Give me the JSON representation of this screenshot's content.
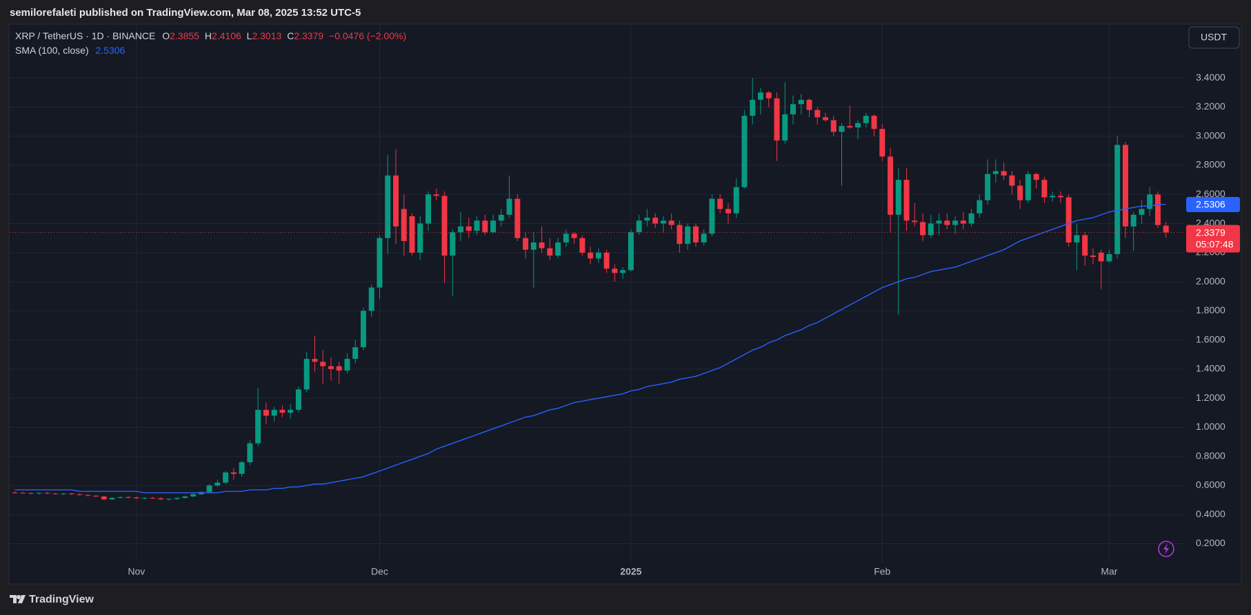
{
  "header": "semilorefaleti published on TradingView.com, Mar 08, 2025 13:52 UTC-5",
  "footer_brand": "TradingView",
  "chart_data": {
    "type": "candlestick",
    "currency_button": "USDT",
    "countdown": "05:07:48",
    "ohlc_letters": [
      "O",
      "H",
      "L",
      "C"
    ],
    "change": "−0.0476 (−2.00%)",
    "categories": [
      null,
      null,
      null,
      null,
      null,
      null,
      null,
      null,
      null,
      null,
      null,
      null,
      null,
      null,
      null,
      "Nov",
      null,
      null,
      null,
      null,
      null,
      null,
      null,
      null,
      null,
      null,
      null,
      null,
      null,
      null,
      null,
      null,
      null,
      null,
      null,
      null,
      null,
      null,
      null,
      null,
      null,
      null,
      null,
      null,
      null,
      "Dec",
      null,
      null,
      null,
      null,
      null,
      null,
      null,
      null,
      null,
      null,
      null,
      null,
      null,
      null,
      null,
      null,
      null,
      null,
      null,
      null,
      null,
      null,
      null,
      null,
      null,
      null,
      null,
      null,
      null,
      null,
      "2025",
      null,
      null,
      null,
      null,
      null,
      null,
      null,
      null,
      null,
      null,
      null,
      null,
      null,
      null,
      null,
      null,
      null,
      null,
      null,
      null,
      null,
      null,
      null,
      null,
      null,
      null,
      null,
      null,
      null,
      null,
      "Feb",
      null,
      null,
      null,
      null,
      null,
      null,
      null,
      null,
      null,
      null,
      null,
      null,
      null,
      null,
      null,
      null,
      null,
      null,
      null,
      null,
      null,
      null,
      null,
      null,
      null,
      null,
      null,
      "Mar",
      null,
      null,
      null,
      null,
      null,
      null,
      null
    ],
    "series": [
      {
        "name": "XRP / TetherUS · 1D · BINANCE",
        "up_color": "#089981",
        "down_color": "#f23645",
        "open": [
          0.552,
          0.55,
          0.548,
          0.545,
          0.55,
          0.545,
          0.542,
          0.545,
          0.54,
          0.535,
          0.53,
          0.525,
          0.505,
          0.515,
          0.52,
          0.518,
          0.512,
          0.515,
          0.512,
          0.505,
          0.508,
          0.515,
          0.525,
          0.54,
          0.555,
          0.6,
          0.62,
          0.69,
          0.68,
          0.76,
          0.89,
          1.12,
          1.08,
          1.12,
          1.1,
          1.12,
          1.26,
          1.47,
          1.45,
          1.42,
          1.42,
          1.39,
          1.47,
          1.55,
          1.8,
          1.96,
          2.3,
          2.73,
          2.5,
          2.45,
          2.2,
          2.4,
          2.6,
          2.59,
          2.18,
          2.34,
          2.38,
          2.35,
          2.42,
          2.34,
          2.42,
          2.46,
          2.57,
          2.3,
          2.22,
          2.27,
          2.23,
          2.18,
          2.27,
          2.33,
          2.3,
          2.2,
          2.16,
          2.2,
          2.09,
          2.06,
          2.08,
          2.34,
          2.42,
          2.44,
          2.4,
          2.42,
          2.39,
          2.26,
          2.38,
          2.27,
          2.33,
          2.57,
          2.5,
          2.47,
          2.65,
          3.14,
          3.25,
          3.3,
          3.26,
          2.97,
          3.15,
          3.22,
          3.25,
          3.18,
          3.13,
          3.11,
          3.03,
          3.07,
          3.06,
          3.09,
          3.14,
          3.05,
          2.86,
          2.46,
          2.7,
          2.42,
          2.41,
          2.32,
          2.4,
          2.42,
          2.39,
          2.42,
          2.4,
          2.47,
          2.56,
          2.74,
          2.76,
          2.73,
          2.66,
          2.56,
          2.74,
          2.7,
          2.58,
          2.59,
          2.58,
          2.27,
          2.32,
          2.18,
          2.2,
          2.14,
          2.19,
          2.94,
          2.38,
          2.46,
          2.5,
          2.6,
          2.3855
        ],
        "high": [
          0.56,
          0.556,
          0.553,
          0.552,
          0.555,
          0.55,
          0.548,
          0.55,
          0.546,
          0.54,
          0.535,
          0.53,
          0.52,
          0.525,
          0.528,
          0.525,
          0.52,
          0.522,
          0.518,
          0.512,
          0.518,
          0.53,
          0.545,
          0.56,
          0.61,
          0.64,
          0.7,
          0.72,
          0.77,
          0.91,
          1.27,
          1.17,
          1.14,
          1.15,
          1.16,
          1.28,
          1.52,
          1.63,
          1.53,
          1.48,
          1.45,
          1.51,
          1.6,
          1.82,
          1.98,
          2.32,
          2.87,
          2.91,
          2.6,
          2.47,
          2.45,
          2.62,
          2.64,
          2.62,
          2.36,
          2.48,
          2.44,
          2.45,
          2.46,
          2.46,
          2.5,
          2.73,
          2.6,
          2.34,
          2.34,
          2.38,
          2.3,
          2.3,
          2.36,
          2.34,
          2.32,
          2.24,
          2.23,
          2.22,
          2.12,
          2.1,
          2.36,
          2.46,
          2.5,
          2.47,
          2.45,
          2.47,
          2.42,
          2.4,
          2.4,
          2.36,
          2.6,
          2.6,
          2.54,
          2.71,
          3.18,
          3.4,
          3.33,
          3.31,
          3.3,
          3.37,
          3.28,
          3.29,
          3.26,
          3.2,
          3.16,
          3.14,
          3.09,
          3.21,
          3.11,
          3.16,
          3.15,
          3.08,
          2.92,
          2.78,
          2.78,
          2.54,
          2.47,
          2.46,
          2.47,
          2.47,
          2.45,
          2.48,
          2.5,
          2.6,
          2.84,
          2.84,
          2.82,
          2.76,
          2.7,
          2.76,
          2.75,
          2.72,
          2.62,
          2.62,
          2.6,
          2.4,
          2.34,
          2.23,
          2.22,
          2.22,
          3.0,
          2.96,
          2.48,
          2.56,
          2.65,
          2.62,
          2.4106
        ],
        "low": [
          0.545,
          0.545,
          0.54,
          0.538,
          0.542,
          0.538,
          0.535,
          0.536,
          0.53,
          0.525,
          0.52,
          0.5,
          0.5,
          0.51,
          0.512,
          0.508,
          0.505,
          0.508,
          0.5,
          0.498,
          0.502,
          0.51,
          0.52,
          0.535,
          0.55,
          0.59,
          0.61,
          0.64,
          0.66,
          0.74,
          0.87,
          1.02,
          1.04,
          1.07,
          1.06,
          1.1,
          1.24,
          1.38,
          1.3,
          1.32,
          1.3,
          1.37,
          1.44,
          1.53,
          1.76,
          1.88,
          2.19,
          2.26,
          2.18,
          2.18,
          2.15,
          2.35,
          2.56,
          1.99,
          1.9,
          2.28,
          2.3,
          2.32,
          2.32,
          2.33,
          2.38,
          2.44,
          2.28,
          2.16,
          1.96,
          2.2,
          2.15,
          2.16,
          2.24,
          2.26,
          2.18,
          2.12,
          2.13,
          2.06,
          2.0,
          2.02,
          2.07,
          2.32,
          2.38,
          2.37,
          2.34,
          2.36,
          2.2,
          2.22,
          2.24,
          2.25,
          2.31,
          2.47,
          2.4,
          2.44,
          2.64,
          3.08,
          3.15,
          3.2,
          2.83,
          2.95,
          3.08,
          3.15,
          3.13,
          3.08,
          3.1,
          3.0,
          2.66,
          3.05,
          2.98,
          3.06,
          3.0,
          2.83,
          2.34,
          1.77,
          2.35,
          2.38,
          2.28,
          2.3,
          2.32,
          2.36,
          2.33,
          2.36,
          2.38,
          2.44,
          2.53,
          2.68,
          2.7,
          2.6,
          2.5,
          2.54,
          2.64,
          2.54,
          2.55,
          2.54,
          2.24,
          2.08,
          2.11,
          2.12,
          1.95,
          2.13,
          2.16,
          2.3,
          2.21,
          2.4,
          2.45,
          2.37,
          2.3013
        ],
        "close": [
          0.55,
          0.548,
          0.545,
          0.55,
          0.545,
          0.542,
          0.545,
          0.54,
          0.535,
          0.53,
          0.525,
          0.505,
          0.515,
          0.52,
          0.518,
          0.512,
          0.515,
          0.512,
          0.505,
          0.508,
          0.515,
          0.525,
          0.54,
          0.555,
          0.6,
          0.62,
          0.69,
          0.68,
          0.76,
          0.89,
          1.12,
          1.08,
          1.12,
          1.1,
          1.12,
          1.26,
          1.47,
          1.45,
          1.42,
          1.4,
          1.39,
          1.47,
          1.55,
          1.8,
          1.96,
          2.3,
          2.73,
          2.38,
          2.28,
          2.2,
          2.4,
          2.6,
          2.59,
          2.18,
          2.34,
          2.38,
          2.35,
          2.42,
          2.34,
          2.42,
          2.46,
          2.57,
          2.3,
          2.22,
          2.27,
          2.23,
          2.18,
          2.27,
          2.33,
          2.3,
          2.2,
          2.16,
          2.2,
          2.09,
          2.06,
          2.08,
          2.34,
          2.42,
          2.44,
          2.4,
          2.42,
          2.39,
          2.26,
          2.38,
          2.27,
          2.33,
          2.57,
          2.5,
          2.47,
          2.65,
          3.14,
          3.25,
          3.3,
          3.26,
          2.97,
          3.15,
          3.22,
          3.25,
          3.18,
          3.13,
          3.11,
          3.03,
          3.07,
          3.06,
          3.09,
          3.14,
          3.05,
          2.86,
          2.46,
          2.7,
          2.42,
          2.41,
          2.32,
          2.4,
          2.42,
          2.39,
          2.42,
          2.4,
          2.47,
          2.56,
          2.74,
          2.76,
          2.73,
          2.66,
          2.56,
          2.74,
          2.7,
          2.58,
          2.59,
          2.58,
          2.27,
          2.32,
          2.18,
          2.17,
          2.14,
          2.19,
          2.94,
          2.38,
          2.46,
          2.5,
          2.6,
          2.39,
          2.3379
        ]
      },
      {
        "name": "SMA (100, close)",
        "type": "line",
        "color": "#2962ff",
        "values": [
          0.57,
          0.57,
          0.57,
          0.57,
          0.57,
          0.57,
          0.57,
          0.57,
          0.56,
          0.56,
          0.56,
          0.56,
          0.56,
          0.56,
          0.56,
          0.56,
          0.55,
          0.55,
          0.55,
          0.55,
          0.55,
          0.55,
          0.55,
          0.55,
          0.55,
          0.55,
          0.56,
          0.56,
          0.56,
          0.57,
          0.57,
          0.57,
          0.58,
          0.58,
          0.59,
          0.59,
          0.6,
          0.61,
          0.61,
          0.62,
          0.63,
          0.64,
          0.65,
          0.66,
          0.68,
          0.7,
          0.72,
          0.74,
          0.76,
          0.78,
          0.8,
          0.82,
          0.85,
          0.87,
          0.89,
          0.91,
          0.93,
          0.95,
          0.97,
          0.99,
          1.01,
          1.03,
          1.05,
          1.07,
          1.08,
          1.1,
          1.12,
          1.13,
          1.15,
          1.17,
          1.18,
          1.19,
          1.2,
          1.21,
          1.22,
          1.23,
          1.25,
          1.26,
          1.28,
          1.29,
          1.3,
          1.31,
          1.33,
          1.34,
          1.35,
          1.37,
          1.39,
          1.41,
          1.44,
          1.47,
          1.5,
          1.53,
          1.55,
          1.58,
          1.6,
          1.63,
          1.65,
          1.67,
          1.7,
          1.72,
          1.75,
          1.78,
          1.81,
          1.84,
          1.87,
          1.9,
          1.93,
          1.96,
          1.98,
          2.0,
          2.02,
          2.03,
          2.05,
          2.07,
          2.08,
          2.09,
          2.1,
          2.12,
          2.14,
          2.16,
          2.18,
          2.2,
          2.22,
          2.25,
          2.28,
          2.3,
          2.32,
          2.34,
          2.36,
          2.38,
          2.4,
          2.42,
          2.43,
          2.44,
          2.46,
          2.48,
          2.49,
          2.5,
          2.51,
          2.52,
          2.52,
          2.53,
          2.5306
        ]
      }
    ],
    "ylim": [
      0.07,
      3.77
    ],
    "yticks": [
      {
        "value": 0.2,
        "label": "0.2000"
      },
      {
        "value": 0.4,
        "label": "0.4000"
      },
      {
        "value": 0.6,
        "label": "0.6000"
      },
      {
        "value": 0.8,
        "label": "0.8000"
      },
      {
        "value": 1.0,
        "label": "1.0000"
      },
      {
        "value": 1.2,
        "label": "1.2000"
      },
      {
        "value": 1.4,
        "label": "1.4000"
      },
      {
        "value": 1.6,
        "label": "1.6000"
      },
      {
        "value": 1.8,
        "label": "1.8000"
      },
      {
        "value": 2.0,
        "label": "2.0000"
      },
      {
        "value": 2.2,
        "label": "2.2000"
      },
      {
        "value": 2.4,
        "label": "2.4000"
      },
      {
        "value": 2.6,
        "label": "2.6000"
      },
      {
        "value": 2.8,
        "label": "2.8000"
      },
      {
        "value": 3.0,
        "label": "3.0000"
      },
      {
        "value": 3.2,
        "label": "3.2000"
      },
      {
        "value": 3.4,
        "label": "3.4000"
      }
    ],
    "grid": true
  }
}
